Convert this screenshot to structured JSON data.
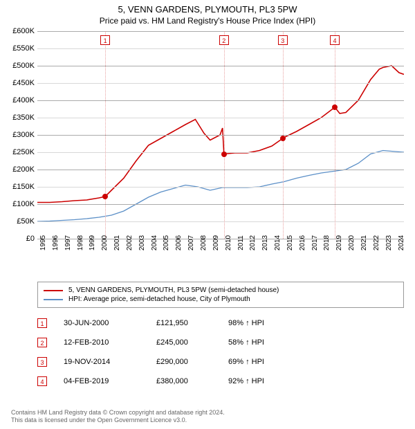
{
  "title": "5, VENN GARDENS, PLYMOUTH, PL3 5PW",
  "subtitle": "Price paid vs. HM Land Registry's House Price Index (HPI)",
  "chart": {
    "type": "line",
    "background_color": "#ffffff",
    "grid_color": "#d8d8d8",
    "grid_color_emph": "#aaaaaa",
    "marker_grid_color": "#e8a0a0",
    "ylim": [
      0,
      600000
    ],
    "ytick_step": 50000,
    "y_ticks": [
      "£0",
      "£50K",
      "£100K",
      "£150K",
      "£200K",
      "£250K",
      "£300K",
      "£350K",
      "£400K",
      "£450K",
      "£500K",
      "£550K",
      "£600K"
    ],
    "x_years": [
      1995,
      1996,
      1997,
      1998,
      1999,
      2000,
      2001,
      2002,
      2003,
      2004,
      2005,
      2006,
      2007,
      2008,
      2009,
      2010,
      2011,
      2012,
      2013,
      2014,
      2015,
      2016,
      2017,
      2018,
      2019,
      2020,
      2021,
      2022,
      2023,
      2024
    ],
    "xlim": [
      1995,
      2024.7
    ],
    "tick_fontsize": 11,
    "series": {
      "property": {
        "label": "5, VENN GARDENS, PLYMOUTH, PL3 5PW (semi-detached house)",
        "color": "#cc0000",
        "line_width": 1.6,
        "points": [
          [
            1995,
            105000
          ],
          [
            1996,
            105000
          ],
          [
            1997,
            107000
          ],
          [
            1998,
            110000
          ],
          [
            1999,
            112000
          ],
          [
            2000,
            118000
          ],
          [
            2000.5,
            121950
          ],
          [
            2001,
            140000
          ],
          [
            2002,
            175000
          ],
          [
            2003,
            225000
          ],
          [
            2004,
            270000
          ],
          [
            2005,
            290000
          ],
          [
            2006,
            310000
          ],
          [
            2007,
            330000
          ],
          [
            2007.8,
            345000
          ],
          [
            2008.5,
            305000
          ],
          [
            2009,
            285000
          ],
          [
            2009.8,
            300000
          ],
          [
            2010,
            320000
          ],
          [
            2010.12,
            245000
          ],
          [
            2011,
            248000
          ],
          [
            2012,
            248000
          ],
          [
            2013,
            255000
          ],
          [
            2014,
            268000
          ],
          [
            2014.88,
            290000
          ],
          [
            2015,
            293000
          ],
          [
            2016,
            310000
          ],
          [
            2017,
            330000
          ],
          [
            2018,
            350000
          ],
          [
            2019.1,
            380000
          ],
          [
            2019.5,
            362000
          ],
          [
            2020,
            365000
          ],
          [
            2021,
            400000
          ],
          [
            2022,
            460000
          ],
          [
            2022.7,
            490000
          ],
          [
            2023,
            495000
          ],
          [
            2023.7,
            500000
          ],
          [
            2024.3,
            480000
          ],
          [
            2024.7,
            475000
          ]
        ]
      },
      "hpi": {
        "label": "HPI: Average price, semi-detached house, City of Plymouth",
        "color": "#5b8fc7",
        "line_width": 1.3,
        "points": [
          [
            1995,
            50000
          ],
          [
            1996,
            51000
          ],
          [
            1997,
            53000
          ],
          [
            1998,
            55000
          ],
          [
            1999,
            58000
          ],
          [
            2000,
            62000
          ],
          [
            2001,
            68000
          ],
          [
            2002,
            80000
          ],
          [
            2003,
            100000
          ],
          [
            2004,
            120000
          ],
          [
            2005,
            135000
          ],
          [
            2006,
            145000
          ],
          [
            2007,
            155000
          ],
          [
            2008,
            150000
          ],
          [
            2009,
            140000
          ],
          [
            2010,
            148000
          ],
          [
            2011,
            148000
          ],
          [
            2012,
            148000
          ],
          [
            2013,
            150000
          ],
          [
            2014,
            158000
          ],
          [
            2015,
            165000
          ],
          [
            2016,
            175000
          ],
          [
            2017,
            183000
          ],
          [
            2018,
            190000
          ],
          [
            2019,
            195000
          ],
          [
            2020,
            200000
          ],
          [
            2021,
            218000
          ],
          [
            2022,
            245000
          ],
          [
            2023,
            255000
          ],
          [
            2024,
            252000
          ],
          [
            2024.7,
            250000
          ]
        ]
      }
    },
    "sale_markers": [
      {
        "n": "1",
        "x": 2000.5,
        "y": 121950
      },
      {
        "n": "2",
        "x": 2010.12,
        "y": 245000
      },
      {
        "n": "3",
        "x": 2014.88,
        "y": 290000
      },
      {
        "n": "4",
        "x": 2019.1,
        "y": 380000
      }
    ]
  },
  "legend": {
    "border_color": "#999999",
    "fontsize": 10
  },
  "transactions": [
    {
      "n": "1",
      "date": "30-JUN-2000",
      "price": "£121,950",
      "pct": "98% ↑ HPI"
    },
    {
      "n": "2",
      "date": "12-FEB-2010",
      "price": "£245,000",
      "pct": "58% ↑ HPI"
    },
    {
      "n": "3",
      "date": "19-NOV-2014",
      "price": "£290,000",
      "pct": "69% ↑ HPI"
    },
    {
      "n": "4",
      "date": "04-FEB-2019",
      "price": "£380,000",
      "pct": "92% ↑ HPI"
    }
  ],
  "footer": {
    "line1": "Contains HM Land Registry data © Crown copyright and database right 2024.",
    "line2": "This data is licensed under the Open Government Licence v3.0.",
    "color": "#666666",
    "fontsize": 9
  }
}
